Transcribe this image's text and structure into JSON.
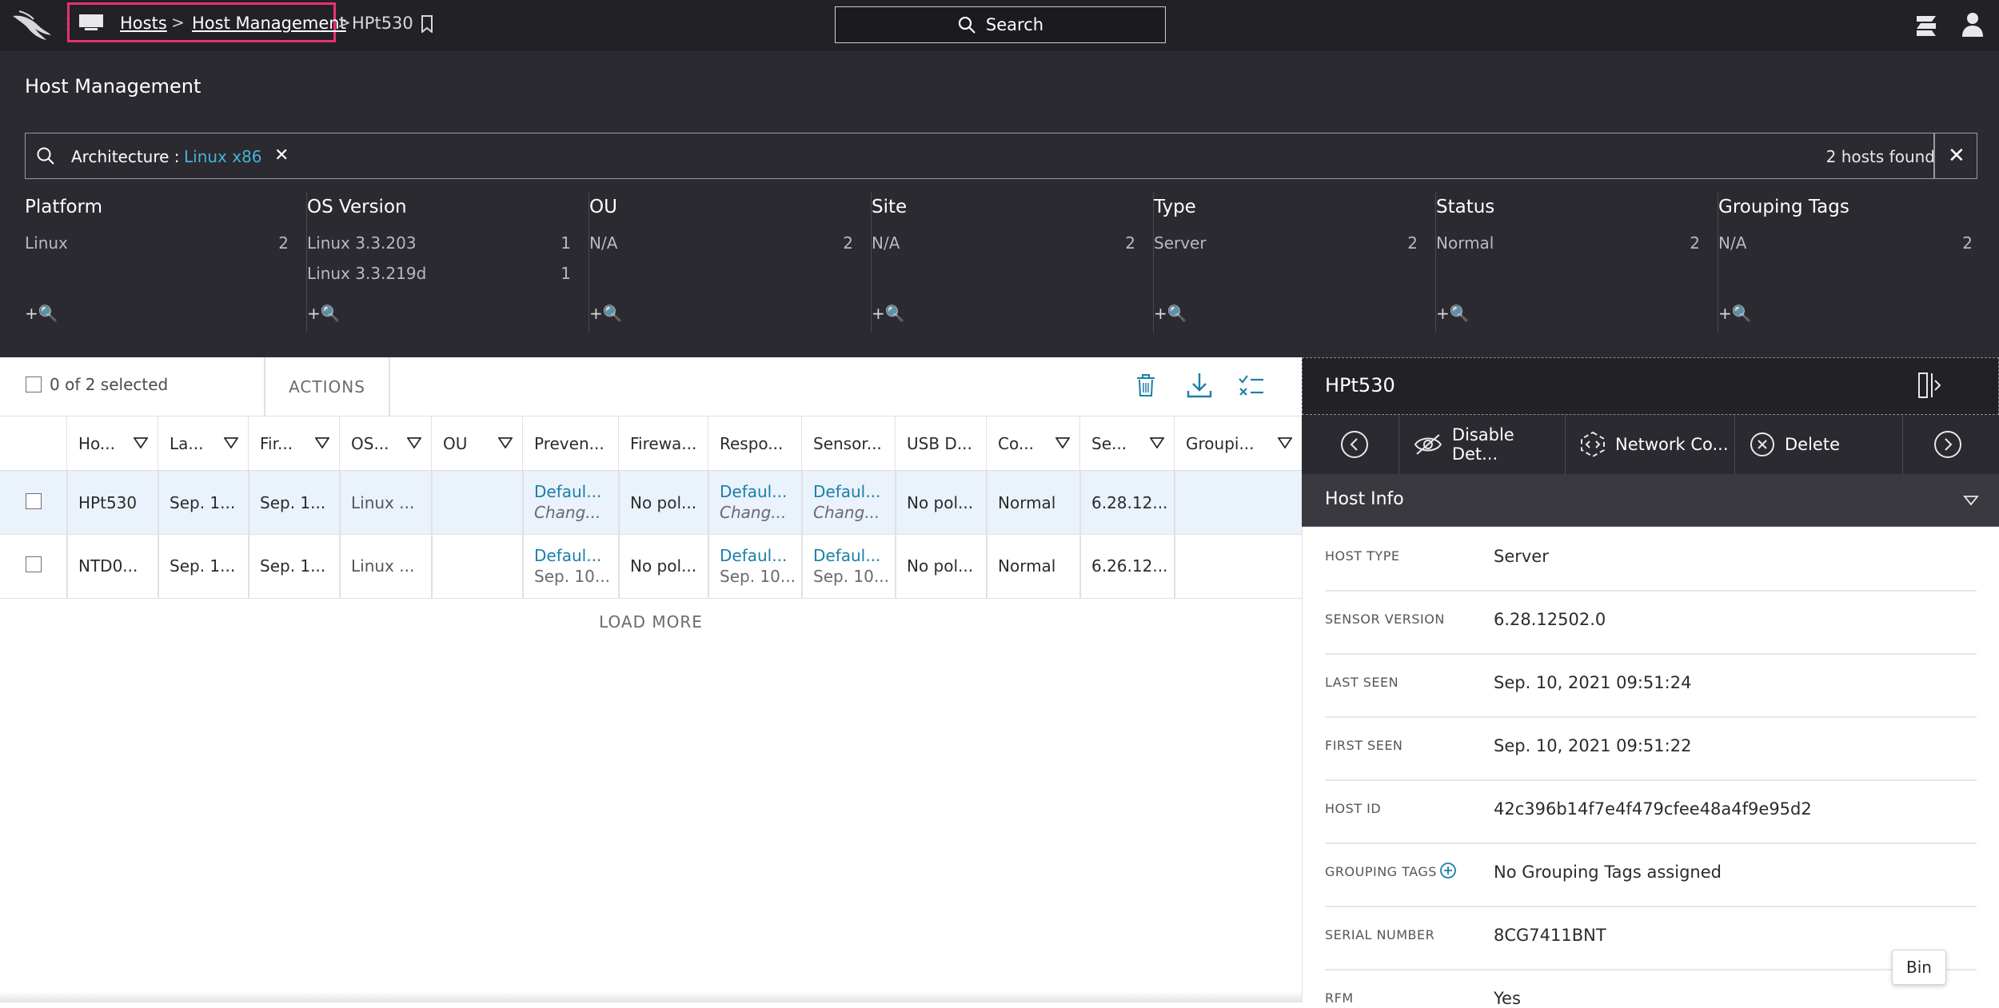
{
  "breadcrumb": {
    "hosts": "Hosts",
    "host_management": "Host Management",
    "current": "HPt530",
    "sep": ">"
  },
  "search": {
    "label": "Search"
  },
  "page": {
    "title": "Host Management"
  },
  "filter": {
    "label": "Architecture :",
    "value": "Linux x86",
    "remove": "✕",
    "hosts_found": "2 hosts found",
    "clear": "✕"
  },
  "facets": [
    {
      "title": "Platform",
      "rows": [
        {
          "label": "Linux",
          "count": "2"
        }
      ],
      "add": "+🔍"
    },
    {
      "title": "OS Version",
      "rows": [
        {
          "label": "Linux 3.3.203",
          "count": "1"
        },
        {
          "label": "Linux 3.3.219d",
          "count": "1"
        }
      ],
      "add": "+🔍"
    },
    {
      "title": "OU",
      "rows": [
        {
          "label": "N/A",
          "count": "2"
        }
      ],
      "add": "+🔍"
    },
    {
      "title": "Site",
      "rows": [
        {
          "label": "N/A",
          "count": "2"
        }
      ],
      "add": "+🔍"
    },
    {
      "title": "Type",
      "rows": [
        {
          "label": "Server",
          "count": "2"
        }
      ],
      "add": "+🔍"
    },
    {
      "title": "Status",
      "rows": [
        {
          "label": "Normal",
          "count": "2"
        }
      ],
      "add": "+🔍"
    },
    {
      "title": "Grouping Tags",
      "rows": [
        {
          "label": "N/A",
          "count": "2"
        }
      ],
      "add": "+🔍"
    }
  ],
  "toolbar": {
    "selected": "0 of 2 selected",
    "actions": "ACTIONS"
  },
  "table": {
    "columns": [
      "Ho...",
      "La...",
      "Fir...",
      "OS...",
      "OU",
      "Preven...",
      "Firewa...",
      "Respo...",
      "Sensor...",
      "USB D...",
      "Co...",
      "Se...",
      "Groupi..."
    ],
    "rows": [
      {
        "host": "HPt530",
        "last": "Sep. 1...",
        "first": "Sep. 1...",
        "os": "Linux ...",
        "ou": "",
        "prev": "Defaul...",
        "prev_sub": "Chang...",
        "fw": "No pol...",
        "resp": "Defaul...",
        "resp_sub": "Chang...",
        "sensor": "Defaul...",
        "sensor_sub": "Chang...",
        "usb": "No pol...",
        "cont": "Normal",
        "ver": "6.28.12..."
      },
      {
        "host": "NTD0...",
        "last": "Sep. 1...",
        "first": "Sep. 1...",
        "os": "Linux ...",
        "ou": "",
        "prev": "Defaul...",
        "prev_sub": "Sep. 10...",
        "fw": "No pol...",
        "resp": "Defaul...",
        "resp_sub": "Sep. 10...",
        "sensor": "Defaul...",
        "sensor_sub": "Sep. 10...",
        "usb": "No pol...",
        "cont": "Normal",
        "ver": "6.26.12..."
      }
    ],
    "load_more": "LOAD MORE"
  },
  "panel": {
    "title": "HPt530",
    "actions": {
      "disable": "Disable Det...",
      "network": "Network Co...",
      "delete": "Delete"
    },
    "section": "Host Info",
    "fields": [
      {
        "label": "HOST TYPE",
        "value": "Server"
      },
      {
        "label": "SENSOR VERSION",
        "value": "6.28.12502.0"
      },
      {
        "label": "LAST SEEN",
        "value": "Sep. 10, 2021 09:51:24"
      },
      {
        "label": "FIRST SEEN",
        "value": "Sep. 10, 2021 09:51:22"
      },
      {
        "label": "HOST ID",
        "value": "42c396b14f7e4f479cfee48a4f9e95d2"
      },
      {
        "label": "GROUPING TAGS",
        "value": "No Grouping Tags assigned"
      },
      {
        "label": "SERIAL NUMBER",
        "value": "8CG7411BNT"
      },
      {
        "label": "RFM",
        "value": "Yes"
      }
    ]
  },
  "tooltip": {
    "bin": "Bin"
  },
  "colors": {
    "topbar": "#212126",
    "panel": "#2b2a30",
    "accent_link": "#1a7fa8",
    "filter_value": "#45b3d6",
    "highlight_box": "#e8326c",
    "row_selected": "#eaf2fb"
  }
}
